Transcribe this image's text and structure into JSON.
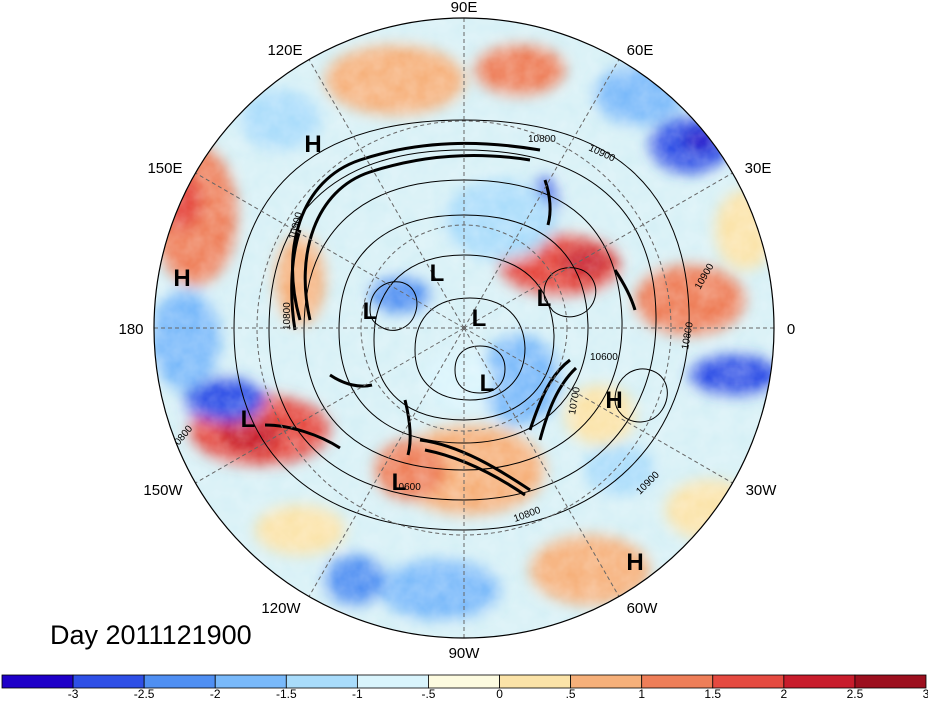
{
  "title": "Day 2011121900",
  "projection": "north-polar-stereographic",
  "longitude_labels": [
    "90E",
    "60E",
    "30E",
    "0",
    "30W",
    "60W",
    "90W",
    "120W",
    "150W",
    "180",
    "150E",
    "120E"
  ],
  "pressure_centers": [
    {
      "type": "H"
    },
    {
      "type": "H"
    },
    {
      "type": "H"
    },
    {
      "type": "H"
    },
    {
      "type": "L"
    },
    {
      "type": "L"
    },
    {
      "type": "L"
    },
    {
      "type": "L"
    },
    {
      "type": "L"
    },
    {
      "type": "L"
    },
    {
      "type": "L"
    }
  ],
  "contour_labels": [
    "10800",
    "10900",
    "10900",
    "10800",
    "10600",
    "10700",
    "10900",
    "10800",
    "10900",
    "10800",
    "10800",
    "10600"
  ],
  "colorbar": {
    "labels": [
      "-3",
      "-2.5",
      "-2",
      "-1.5",
      "-1",
      "-.5",
      "0",
      ".5",
      "1",
      "1.5",
      "2",
      "2.5",
      "3"
    ],
    "colors": [
      "#1e00c8",
      "#2e4fe6",
      "#4f8ff2",
      "#79b9fa",
      "#a9dcfb",
      "#d9f4fc",
      "#fdfbe0",
      "#fbe3a8",
      "#f6b07a",
      "#ee7e58",
      "#e54a40",
      "#c81c2c",
      "#9c0f1e"
    ]
  }
}
